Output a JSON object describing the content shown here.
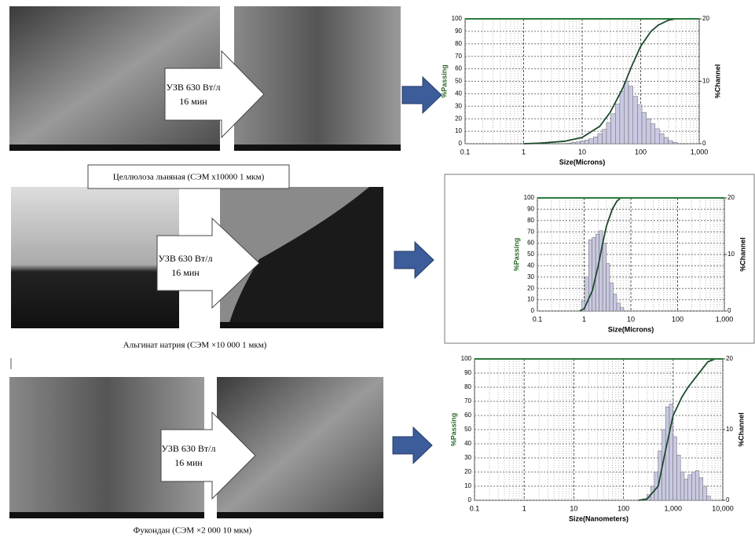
{
  "panels": [
    {
      "arrow_text": [
        "УЗВ 630 Вт/л",
        "16 мин"
      ],
      "caption": "Целлюлоза льняная (СЭМ х10000 1 мкм)"
    },
    {
      "arrow_text": [
        "УЗВ 630 Вт/л",
        "16 мин"
      ],
      "caption": "Альгинат натрия (СЭМ ×10 000 1 мкм)"
    },
    {
      "arrow_text": [
        "УЗВ 630 Вт/л",
        "16 мин"
      ],
      "caption": "Фукондан (СЭМ ×2 000 10 мкм)"
    }
  ],
  "chart_data": [
    {
      "type": "psd",
      "xlabel": "Size(Microns)",
      "ylabel": "%Passing",
      "y2label": "%Channel",
      "log_x": true,
      "grid": true,
      "xlim": [
        0.1,
        1000
      ],
      "xticks": [
        0.1,
        1,
        10,
        100,
        {
          "value": 1000,
          "label": "1,000"
        }
      ],
      "ylim": [
        0,
        100
      ],
      "yticks": [
        0,
        10,
        20,
        30,
        40,
        50,
        60,
        70,
        80,
        90,
        100
      ],
      "y2lim": [
        0,
        20
      ],
      "y2ticks": [
        0,
        10,
        20
      ],
      "histogram": {
        "axis": "y2",
        "color": "#c9c9e3",
        "bins": [
          5.5,
          6.5,
          7.8,
          9.25,
          11,
          13,
          15.6,
          18.5,
          22,
          26,
          31,
          37,
          44,
          52,
          62,
          74,
          88,
          105,
          125,
          148,
          176,
          209,
          250,
          296,
          352,
          419
        ],
        "counts": [
          0.1,
          0.2,
          0.3,
          0.4,
          0.6,
          0.8,
          1.1,
          1.6,
          2.3,
          3.4,
          4.8,
          6.4,
          8.4,
          10,
          9.2,
          7.6,
          6.2,
          5,
          4,
          3.2,
          2.4,
          1.6,
          1,
          0.5,
          0.2
        ]
      },
      "line": {
        "color": "#1d4a2c",
        "x": [
          1,
          2,
          5,
          10,
          20,
          30,
          50,
          70,
          100,
          150,
          200,
          300,
          400,
          1000
        ],
        "values": [
          0,
          0.5,
          2,
          5,
          14,
          25,
          45,
          62,
          78,
          90,
          95,
          99,
          100,
          100
        ]
      }
    },
    {
      "type": "psd",
      "xlabel": "Size(Microns)",
      "ylabel": "%Passing",
      "y2label": "%Channel",
      "log_x": true,
      "grid": true,
      "xlim": [
        0.1,
        1000
      ],
      "xticks": [
        0.1,
        1,
        10,
        100,
        {
          "value": 1000,
          "label": "1,000"
        }
      ],
      "ylim": [
        0,
        100
      ],
      "yticks": [
        0,
        10,
        20,
        30,
        40,
        50,
        60,
        70,
        80,
        90,
        100
      ],
      "y2lim": [
        0,
        20
      ],
      "y2ticks": [
        0,
        10,
        20
      ],
      "histogram": {
        "axis": "y2",
        "color": "#c9c9e3",
        "bins": [
          0.88,
          1.05,
          1.25,
          1.48,
          1.76,
          2.09,
          2.49,
          2.96,
          3.52,
          4.19,
          4.98,
          5.92,
          7.04
        ],
        "counts": [
          1.8,
          6,
          12.6,
          13,
          13.6,
          14.2,
          12,
          8.4,
          5,
          3,
          1.4,
          0.6
        ]
      },
      "line": {
        "color": "#1d4a2c",
        "x": [
          0.8,
          1,
          1.5,
          2,
          2.5,
          3,
          4,
          5,
          6,
          7
        ],
        "values": [
          0,
          2,
          18,
          40,
          60,
          75,
          90,
          97,
          100,
          100
        ]
      }
    },
    {
      "type": "psd",
      "xlabel": "Size(Nanometers)",
      "ylabel": "%Passing",
      "y2label": "%Channel",
      "log_x": true,
      "grid": true,
      "xlim": [
        0.1,
        10000
      ],
      "xticks": [
        0.1,
        1,
        10,
        100,
        {
          "value": 1000,
          "label": "1,000"
        },
        {
          "value": 10000,
          "label": "10,000"
        }
      ],
      "ylim": [
        0,
        100
      ],
      "yticks": [
        0,
        10,
        20,
        30,
        40,
        50,
        60,
        70,
        80,
        90,
        100
      ],
      "y2lim": [
        0,
        20
      ],
      "y2ticks": [
        0,
        10,
        20
      ],
      "histogram": {
        "axis": "y2",
        "color": "#c9c9e3",
        "bins": [
          296,
          352,
          419,
          498,
          592,
          704,
          837,
          995,
          1183,
          1408,
          1674,
          1991,
          2367,
          2815,
          3348,
          3981,
          4734,
          5630
        ],
        "counts": [
          0.8,
          2,
          4,
          7,
          10,
          13.2,
          13.6,
          9,
          6.4,
          4,
          3,
          3.6,
          4,
          4.2,
          3.2,
          2,
          0.6
        ]
      },
      "line": {
        "color": "#1d4a2c",
        "x": [
          200,
          300,
          500,
          700,
          1000,
          1500,
          2000,
          3000,
          5000,
          7000
        ],
        "values": [
          0,
          1,
          10,
          35,
          60,
          73,
          80,
          88,
          98,
          100
        ]
      }
    }
  ]
}
